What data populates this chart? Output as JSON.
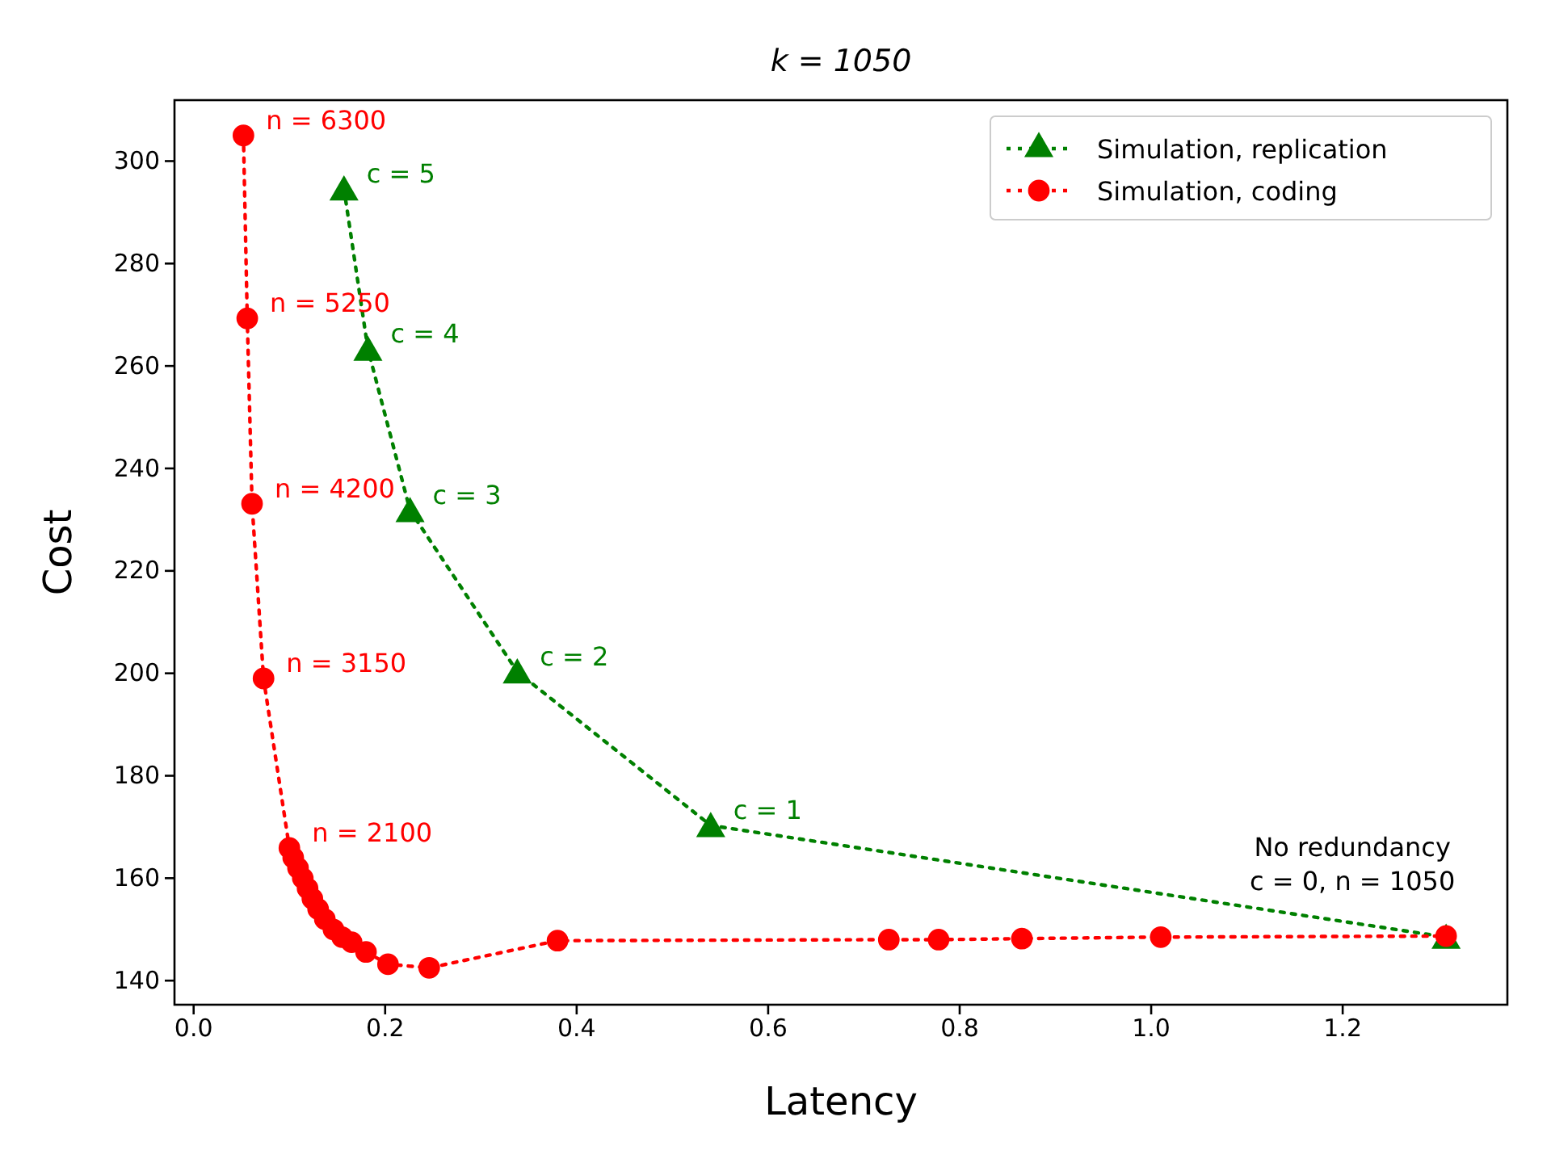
{
  "chart_data": {
    "type": "line",
    "title": "k = 1050",
    "xlabel": "Latency",
    "ylabel": "Cost",
    "xlim": [
      -0.02,
      1.372
    ],
    "ylim": [
      135.3,
      311.9
    ],
    "xticks": [
      {
        "value": 0,
        "label": "0.0"
      },
      {
        "value": 0.2,
        "label": "0.2"
      },
      {
        "value": 0.4,
        "label": "0.4"
      },
      {
        "value": 0.6,
        "label": "0.6"
      },
      {
        "value": 0.8,
        "label": "0.8"
      },
      {
        "value": 1,
        "label": "1.0"
      },
      {
        "value": 1.2,
        "label": "1.2"
      }
    ],
    "yticks": [
      140,
      160,
      180,
      200,
      220,
      240,
      260,
      280,
      300
    ],
    "grid": false,
    "legend": "top right",
    "line_style": "dotted",
    "series": [
      {
        "name": "Simulation, replication",
        "color": "#008000",
        "marker": "triangle",
        "x": [
          0.157,
          0.182,
          0.226,
          0.338,
          0.54,
          1.308
        ],
        "values": [
          294.6,
          263.3,
          231.8,
          200.3,
          170.3,
          148.5
        ]
      },
      {
        "name": "Simulation, coding",
        "color": "#ff0000",
        "marker": "circle",
        "x": [
          0.052,
          0.056,
          0.061,
          0.073,
          0.1,
          0.104,
          0.109,
          0.114,
          0.119,
          0.124,
          0.13,
          0.137,
          0.146,
          0.155,
          0.165,
          0.18,
          0.203,
          0.246,
          0.38,
          0.726,
          0.778,
          0.865,
          1.01,
          1.308
        ],
        "values": [
          305,
          269.3,
          233.1,
          199,
          165.9,
          164,
          162,
          160,
          158,
          156,
          154,
          152,
          150,
          148.5,
          147.5,
          145.6,
          143.2,
          142.5,
          147.8,
          148,
          148,
          148.2,
          148.5,
          148.7
        ]
      }
    ],
    "annotations": [
      {
        "text": "c = 5",
        "x": 0.157,
        "y": 294.6
      },
      {
        "text": "c = 4",
        "x": 0.182,
        "y": 263.3
      },
      {
        "text": "c = 3",
        "x": 0.226,
        "y": 231.8
      },
      {
        "text": "c = 2",
        "x": 0.338,
        "y": 200.3
      },
      {
        "text": "c = 1",
        "x": 0.54,
        "y": 170.3
      },
      {
        "text": "n = 6300",
        "x": 0.052,
        "y": 305
      },
      {
        "text": "n = 5250",
        "x": 0.056,
        "y": 269.3
      },
      {
        "text": "n = 4200",
        "x": 0.061,
        "y": 233.1
      },
      {
        "text": "n = 3150",
        "x": 0.073,
        "y": 199
      },
      {
        "text": "n = 2100",
        "x": 0.1,
        "y": 165.9
      },
      {
        "text": "No redundancy\nc = 0, n = 1050",
        "x": 1.308,
        "y": 148.6
      }
    ]
  }
}
